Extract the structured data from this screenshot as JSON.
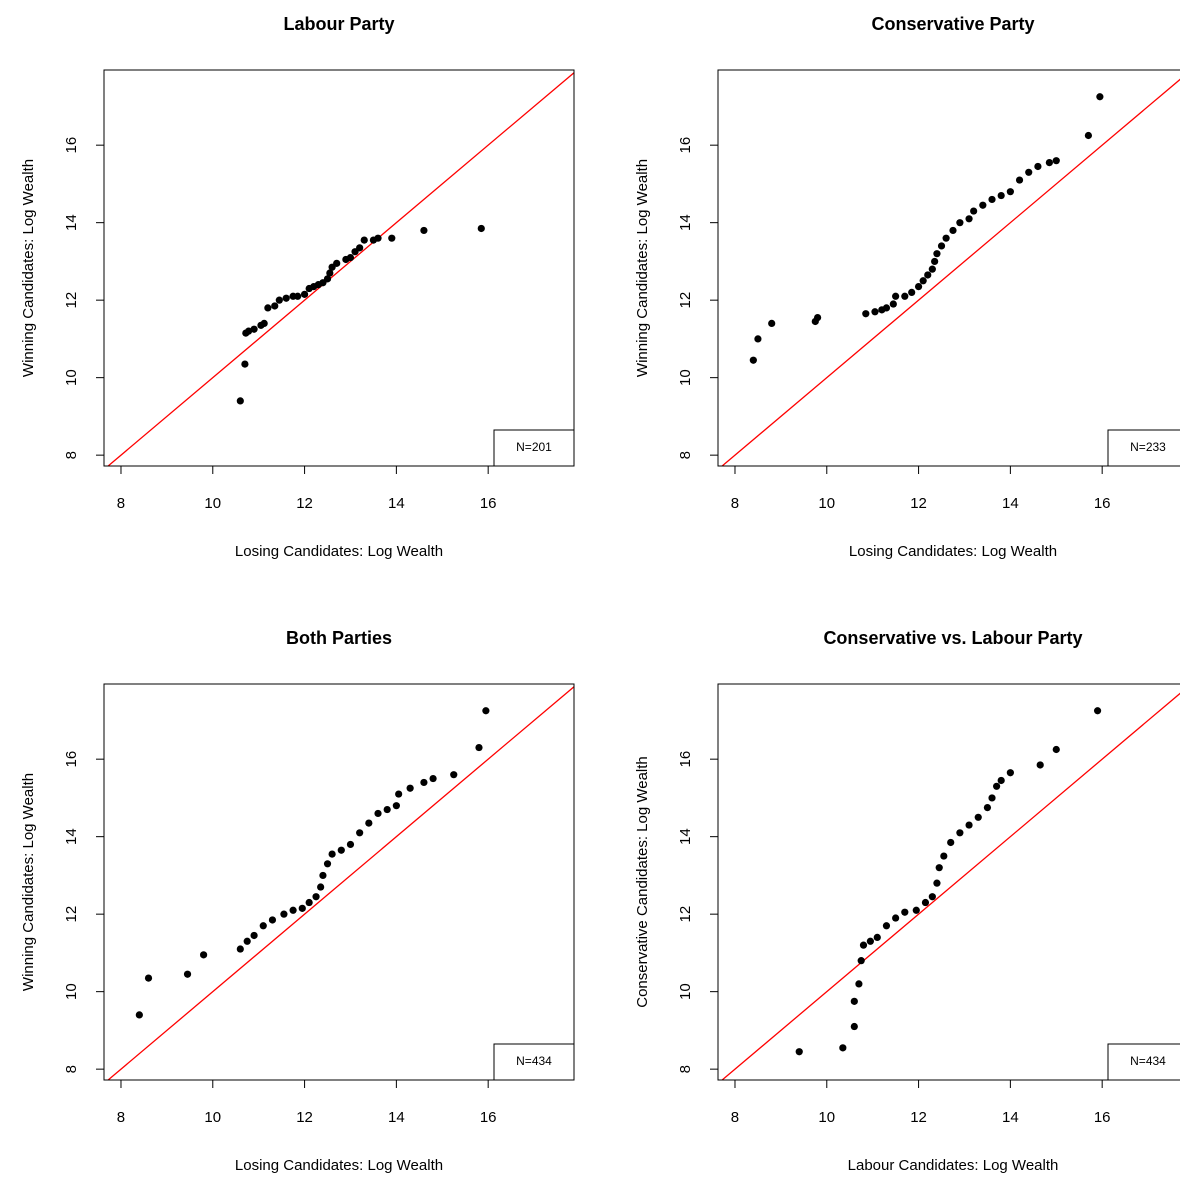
{
  "chart_data": [
    {
      "type": "scatter",
      "title": "Labour Party",
      "x_label": "Losing Candidates: Log Wealth",
      "y_label": "Winning Candidates: Log Wealth",
      "x": [
        10.6,
        10.7,
        10.72,
        10.78,
        10.9,
        11.05,
        11.12,
        11.2,
        11.35,
        11.45,
        11.6,
        11.75,
        11.85,
        12.0,
        12.1,
        12.2,
        12.3,
        12.4,
        12.5,
        12.55,
        12.6,
        12.7,
        12.9,
        13.0,
        13.1,
        13.2,
        13.3,
        13.5,
        13.6,
        13.9,
        14.6,
        15.85
      ],
      "values": [
        9.4,
        10.35,
        11.15,
        11.2,
        11.25,
        11.35,
        11.4,
        11.8,
        11.85,
        12.0,
        12.05,
        12.1,
        12.1,
        12.15,
        12.3,
        12.35,
        12.4,
        12.45,
        12.55,
        12.7,
        12.85,
        12.95,
        13.05,
        13.1,
        13.25,
        13.35,
        13.55,
        13.55,
        13.6,
        13.6,
        13.8,
        13.85
      ],
      "color": "#000000",
      "diagonal_color": "#ff0000",
      "annotation": "N=201",
      "xlim": [
        7.63,
        17.87
      ],
      "ylim": [
        7.72,
        17.94
      ],
      "xticks": [
        8,
        10,
        12,
        14,
        16
      ],
      "yticks": [
        8,
        10,
        12,
        14,
        16
      ]
    },
    {
      "type": "scatter",
      "title": "Conservative Party",
      "x_label": "Losing Candidates: Log Wealth",
      "y_label": "Winning Candidates: Log Wealth",
      "x": [
        8.4,
        8.5,
        8.8,
        9.75,
        9.8,
        10.85,
        11.05,
        11.2,
        11.3,
        11.45,
        11.5,
        11.7,
        11.85,
        12.0,
        12.1,
        12.2,
        12.3,
        12.35,
        12.4,
        12.5,
        12.6,
        12.75,
        12.9,
        13.1,
        13.2,
        13.4,
        13.6,
        13.8,
        14.0,
        14.2,
        14.4,
        14.6,
        14.85,
        15.0,
        15.7,
        15.95
      ],
      "values": [
        10.45,
        11.0,
        11.4,
        11.45,
        11.55,
        11.65,
        11.7,
        11.75,
        11.8,
        11.9,
        12.1,
        12.1,
        12.2,
        12.35,
        12.5,
        12.65,
        12.8,
        13.0,
        13.2,
        13.4,
        13.6,
        13.8,
        14.0,
        14.1,
        14.3,
        14.45,
        14.6,
        14.7,
        14.8,
        15.1,
        15.3,
        15.45,
        15.55,
        15.6,
        16.25,
        17.25
      ],
      "color": "#000000",
      "diagonal_color": "#ff0000",
      "annotation": "N=233",
      "xlim": [
        7.63,
        17.87
      ],
      "ylim": [
        7.72,
        17.94
      ],
      "xticks": [
        8,
        10,
        12,
        14,
        16
      ],
      "yticks": [
        8,
        10,
        12,
        14,
        16
      ]
    },
    {
      "type": "scatter",
      "title": "Both Parties",
      "x_label": "Losing Candidates: Log Wealth",
      "y_label": "Winning Candidates: Log Wealth",
      "x": [
        8.4,
        8.6,
        9.45,
        9.8,
        10.6,
        10.75,
        10.9,
        11.1,
        11.3,
        11.55,
        11.75,
        11.95,
        12.1,
        12.25,
        12.35,
        12.4,
        12.5,
        12.6,
        12.8,
        13.0,
        13.2,
        13.4,
        13.6,
        13.8,
        14.0,
        14.05,
        14.3,
        14.6,
        14.8,
        15.25,
        15.8,
        15.95
      ],
      "values": [
        9.4,
        10.35,
        10.45,
        10.95,
        11.1,
        11.3,
        11.45,
        11.7,
        11.85,
        12.0,
        12.1,
        12.15,
        12.3,
        12.45,
        12.7,
        13.0,
        13.3,
        13.55,
        13.65,
        13.8,
        14.1,
        14.35,
        14.6,
        14.7,
        14.8,
        15.1,
        15.25,
        15.4,
        15.5,
        15.6,
        16.3,
        17.25
      ],
      "color": "#000000",
      "diagonal_color": "#ff0000",
      "annotation": "N=434",
      "xlim": [
        7.63,
        17.87
      ],
      "ylim": [
        7.72,
        17.94
      ],
      "xticks": [
        8,
        10,
        12,
        14,
        16
      ],
      "yticks": [
        8,
        10,
        12,
        14,
        16
      ]
    },
    {
      "type": "scatter",
      "title": "Conservative vs. Labour Party",
      "x_label": "Labour Candidates: Log Wealth",
      "y_label": "Conservative Candidates: Log Wealth",
      "x": [
        9.4,
        10.35,
        10.6,
        10.6,
        10.7,
        10.75,
        10.8,
        10.95,
        11.1,
        11.3,
        11.5,
        11.7,
        11.95,
        12.15,
        12.3,
        12.4,
        12.45,
        12.55,
        12.7,
        12.9,
        13.1,
        13.3,
        13.5,
        13.6,
        13.7,
        13.8,
        14.0,
        14.65,
        15.0,
        15.9
      ],
      "values": [
        8.45,
        8.55,
        9.1,
        9.75,
        10.2,
        10.8,
        11.2,
        11.3,
        11.4,
        11.7,
        11.9,
        12.05,
        12.1,
        12.3,
        12.45,
        12.8,
        13.2,
        13.5,
        13.85,
        14.1,
        14.3,
        14.5,
        14.75,
        15.0,
        15.3,
        15.45,
        15.65,
        15.85,
        16.25,
        17.25
      ],
      "color": "#000000",
      "diagonal_color": "#ff0000",
      "annotation": "N=434",
      "xlim": [
        7.63,
        17.87
      ],
      "ylim": [
        7.72,
        17.94
      ],
      "xticks": [
        8,
        10,
        12,
        14,
        16
      ],
      "yticks": [
        8,
        10,
        12,
        14,
        16
      ]
    }
  ]
}
